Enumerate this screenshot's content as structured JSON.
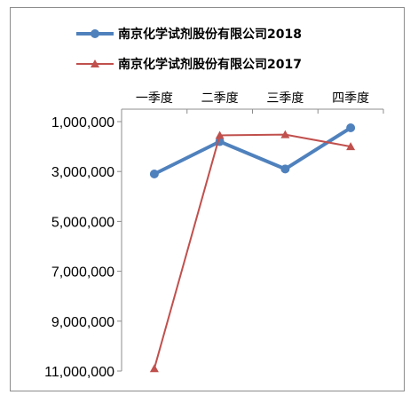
{
  "chart_data": {
    "type": "line",
    "title": "",
    "xlabel": "",
    "ylabel": "",
    "categories": [
      "一季度",
      "二季度",
      "三季度",
      "四季度"
    ],
    "y_axis": {
      "inverted": true,
      "range": [
        11000000,
        1000000
      ],
      "tick_values": [
        1000000,
        3000000,
        5000000,
        7000000,
        9000000,
        11000000
      ],
      "tick_labels": [
        "1,000,000",
        "3,000,000",
        "5,000,000",
        "7,000,000",
        "9,000,000",
        "11,000,000"
      ]
    },
    "grid": false,
    "legend_position": "top",
    "series": [
      {
        "name": "南京化学试剂股份有限公司2018",
        "color": "#4f81bd",
        "marker": "circle",
        "values": [
          3100000,
          1800000,
          2900000,
          1250000
        ]
      },
      {
        "name": "南京化学试剂股份有限公司2017",
        "color": "#c0504d",
        "marker": "triangle",
        "values": [
          10900000,
          1550000,
          1520000,
          2000000
        ]
      }
    ]
  }
}
